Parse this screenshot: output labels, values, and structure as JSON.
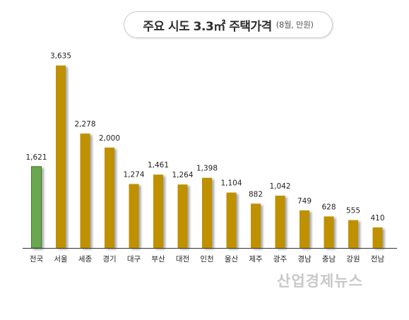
{
  "title": {
    "main": "주요 시도 3.3㎡ 주택가격",
    "sub": "(8월, 만원)"
  },
  "watermark": "산업경제뉴스",
  "colors": {
    "national_bar": "#6aa84f",
    "region_bar": "#bf9000",
    "axis": "#333333"
  },
  "chart_data": {
    "type": "bar",
    "categories": [
      "전국",
      "서울",
      "세종",
      "경기",
      "대구",
      "부산",
      "대전",
      "인천",
      "울산",
      "제주",
      "광주",
      "경남",
      "충남",
      "강원",
      "전남"
    ],
    "values": [
      1621,
      3635,
      2278,
      2000,
      1274,
      1461,
      1264,
      1398,
      1104,
      882,
      1042,
      749,
      628,
      555,
      410
    ],
    "value_labels": [
      "1,621",
      "3,635",
      "2,278",
      "2,000",
      "1,274",
      "1,461",
      "1,264",
      "1,398",
      "1,104",
      "882",
      "1,042",
      "749",
      "628",
      "555",
      "410"
    ],
    "highlight_category": "전국",
    "ylim": [
      0,
      3800
    ],
    "grid": false,
    "legend": "none"
  }
}
